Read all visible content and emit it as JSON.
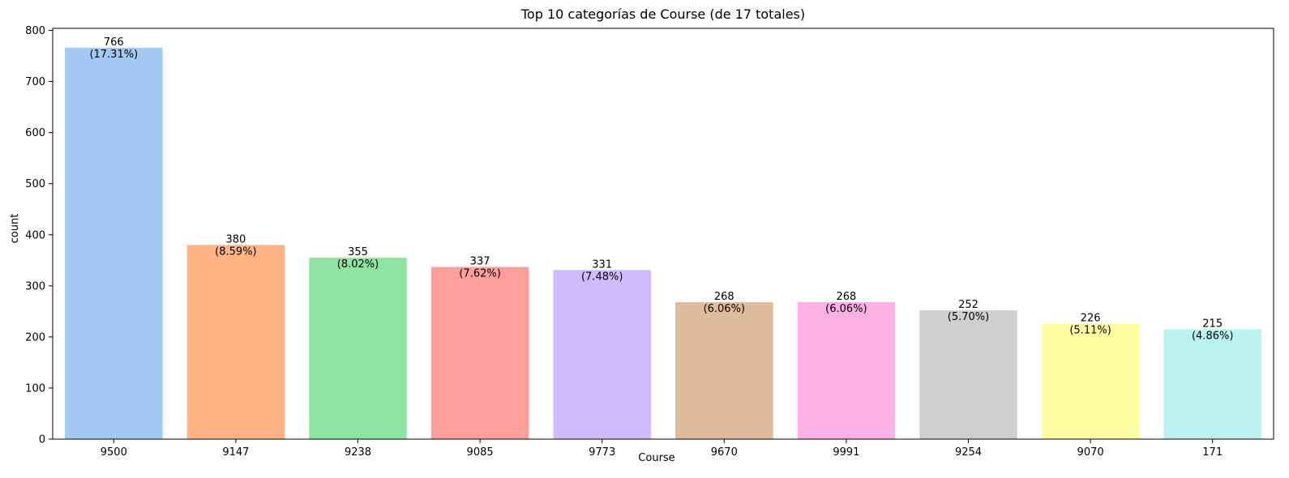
{
  "chart_data": {
    "type": "bar",
    "title": "Top 10 categorías de Course (de 17 totales)",
    "xlabel": "Course",
    "ylabel": "count",
    "categories": [
      "9500",
      "9147",
      "9238",
      "9085",
      "9773",
      "9670",
      "9991",
      "9254",
      "9070",
      "171"
    ],
    "values": [
      766,
      380,
      355,
      337,
      331,
      268,
      268,
      252,
      226,
      215
    ],
    "value_labels": [
      "766",
      "380",
      "355",
      "337",
      "331",
      "268",
      "268",
      "252",
      "226",
      "215"
    ],
    "percent_labels": [
      "(17.31%)",
      "(8.59%)",
      "(8.02%)",
      "(7.62%)",
      "(7.48%)",
      "(6.06%)",
      "(6.06%)",
      "(5.70%)",
      "(5.11%)",
      "(4.86%)"
    ],
    "colors": [
      "#a1c9f4",
      "#ffb482",
      "#8de5a1",
      "#ff9f9b",
      "#d0bbff",
      "#debb9b",
      "#fab0e4",
      "#cfcfcf",
      "#fffea3",
      "#b9f2f0"
    ],
    "ylim": [
      0,
      804
    ],
    "yticks": [
      0,
      100,
      200,
      300,
      400,
      500,
      600,
      700,
      800
    ],
    "ytick_labels": [
      "0",
      "100",
      "200",
      "300",
      "400",
      "500",
      "600",
      "700",
      "800"
    ],
    "grid": false,
    "legend": "none"
  }
}
